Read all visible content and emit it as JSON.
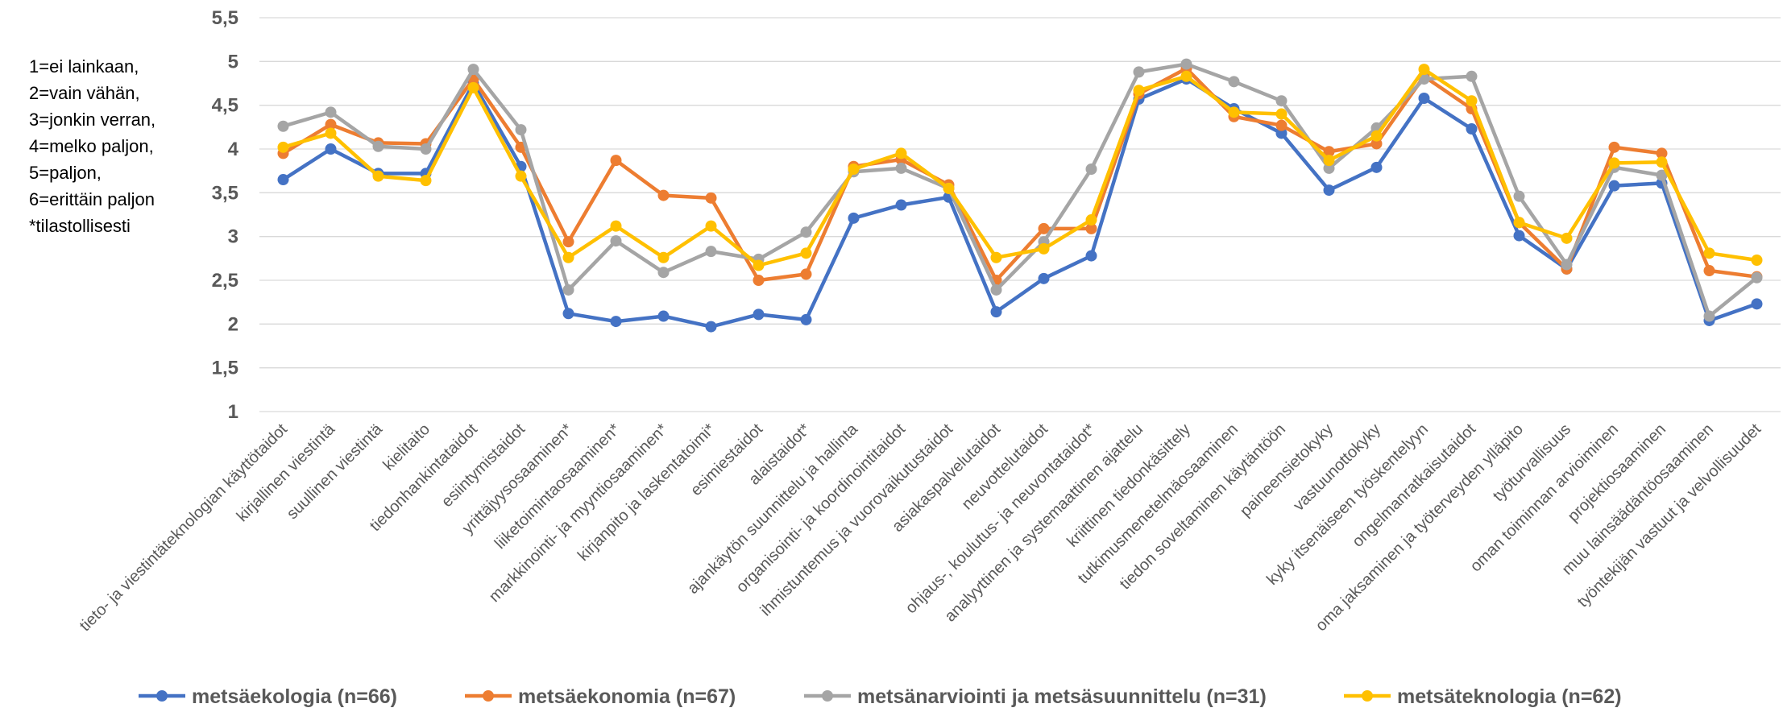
{
  "note": {
    "lines": [
      "1=ei lainkaan,",
      "2=vain vähän,",
      "3=jonkin verran,",
      "4=melko paljon,",
      "5=paljon,",
      "6=erittäin paljon",
      "*tilastollisesti"
    ]
  },
  "chart_data": {
    "type": "line",
    "title": "",
    "xlabel": "",
    "ylabel": "",
    "ylim": [
      1,
      5.5
    ],
    "yticks": [
      "5,5",
      "5",
      "4,5",
      "4",
      "3,5",
      "3",
      "2,5",
      "2",
      "1,5",
      "1"
    ],
    "grid": true,
    "legend_position": "bottom",
    "categories": [
      "tieto- ja viestintäteknologian käyttötaidot",
      "kirjallinen viestintä",
      "suullinen viestintä",
      "kielitaito",
      "tiedonhankintataidot",
      "esiintymistaidot",
      "yrittäjyysosaaminen*",
      "liiketoimintaosaaminen*",
      "markkinointi- ja myyntiosaaminen*",
      "kirjanpito ja laskentatoimi*",
      "esimiestaidot",
      "alaistaidot*",
      "ajankäytön suunnittelu ja hallinta",
      "organisointi- ja koordinointitaidot",
      "ihmistuntemus ja vuorovaikutustaidot",
      "asiakaspalvelutaidot",
      "neuvottelutaidot",
      "ohjaus-, koulutus- ja neuvontataidot*",
      "analyyttinen ja systemaattinen ajattelu",
      "kriittinen tiedonkäsittely",
      "tutkimusmenetelmäosaaminen",
      "tiedon soveltaminen käytäntöön",
      "paineensietokyky",
      "vastuunottokyky",
      "kyky itsenäiseen työskentelyyn",
      "ongelmanratkaisutaidot",
      "oma jaksaminen ja työterveyden ylläpito",
      "työturvallisuus",
      "oman toiminnan arvioiminen",
      "projektiosaaminen",
      "muu lainsäädäntöosaaminen",
      "työntekijän vastuut ja velvollisuudet"
    ],
    "series": [
      {
        "name": "metsäekologia (n=66)",
        "color": "#4472C4",
        "values": [
          3.65,
          4.0,
          3.72,
          3.72,
          4.75,
          3.8,
          2.12,
          2.03,
          2.09,
          1.97,
          2.11,
          2.05,
          3.21,
          3.36,
          3.45,
          2.14,
          2.52,
          2.78,
          4.57,
          4.8,
          4.46,
          4.18,
          3.53,
          3.79,
          4.58,
          4.23,
          3.01,
          2.63,
          3.58,
          3.61,
          2.04,
          2.23
        ]
      },
      {
        "name": "metsäekonomia (n=67)",
        "color": "#ED7D31",
        "values": [
          3.95,
          4.28,
          4.07,
          4.06,
          4.8,
          4.02,
          2.94,
          3.87,
          3.47,
          3.44,
          2.5,
          2.57,
          3.8,
          3.88,
          3.59,
          2.5,
          3.09,
          3.09,
          4.63,
          4.92,
          4.37,
          4.27,
          3.97,
          4.06,
          4.83,
          4.46,
          3.16,
          2.63,
          4.02,
          3.95,
          2.61,
          2.54
        ]
      },
      {
        "name": "metsänarviointi ja metsäsuunnittelu (n=31)",
        "color": "#A5A5A5",
        "values": [
          4.26,
          4.42,
          4.03,
          4.0,
          4.91,
          4.22,
          2.39,
          2.95,
          2.59,
          2.83,
          2.74,
          3.05,
          3.74,
          3.78,
          3.55,
          2.39,
          2.94,
          3.77,
          4.88,
          4.97,
          4.77,
          4.55,
          3.78,
          4.24,
          4.8,
          4.83,
          3.46,
          2.68,
          3.79,
          3.7,
          2.09,
          2.53
        ]
      },
      {
        "name": "metsäteknologia (n=62)",
        "color": "#FFC000",
        "values": [
          4.02,
          4.18,
          3.69,
          3.64,
          4.7,
          3.69,
          2.76,
          3.12,
          2.76,
          3.12,
          2.67,
          2.81,
          3.77,
          3.95,
          3.55,
          2.76,
          2.86,
          3.19,
          4.67,
          4.83,
          4.42,
          4.4,
          3.87,
          4.15,
          4.91,
          4.55,
          3.16,
          2.98,
          3.84,
          3.85,
          2.81,
          2.73
        ]
      }
    ]
  }
}
